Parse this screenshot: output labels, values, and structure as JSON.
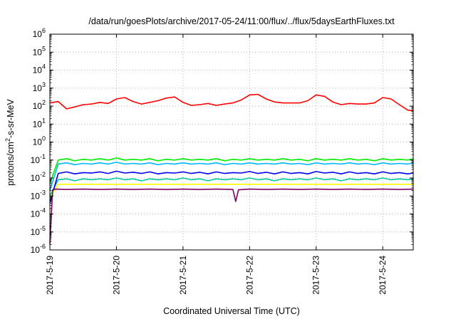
{
  "chart_data": {
    "type": "line",
    "title": "/data/run/goesPlots/archive/2017-05-24/11:00/flux/../flux/5daysEarthFluxes.txt",
    "xlabel": "Coordinated Universal Time (UTC)",
    "ylabel_parts": [
      "protons/cm",
      "2",
      "-s-sr-MeV"
    ],
    "y_scale": "log",
    "ylim_exp": [
      -6,
      6
    ],
    "y_ticks": [
      {
        "base": "10",
        "exp": "-6"
      },
      {
        "base": "10",
        "exp": "-5"
      },
      {
        "base": "10",
        "exp": "-4"
      },
      {
        "base": "10",
        "exp": "-3"
      },
      {
        "base": "10",
        "exp": "-2"
      },
      {
        "base": "10",
        "exp": "-1"
      },
      {
        "base": "10",
        "exp": "0"
      },
      {
        "base": "10",
        "exp": "1"
      },
      {
        "base": "10",
        "exp": "2"
      },
      {
        "base": "10",
        "exp": "3"
      },
      {
        "base": "10",
        "exp": "4"
      },
      {
        "base": "10",
        "exp": "5"
      },
      {
        "base": "10",
        "exp": "6"
      }
    ],
    "x_start": "2017-05-19T00:00",
    "x_end": "2017-05-24T11:00",
    "x_ticks": [
      {
        "label": "2017-5-19",
        "date": "2017-05-19"
      },
      {
        "label": "2017-5-20",
        "date": "2017-05-20"
      },
      {
        "label": "2017-5-21",
        "date": "2017-05-21"
      },
      {
        "label": "2017-5-22",
        "date": "2017-05-22"
      },
      {
        "label": "2017-5-23",
        "date": "2017-05-23"
      },
      {
        "label": "2017-5-24",
        "date": "2017-05-24"
      }
    ],
    "grid": true,
    "series": [
      {
        "color": "#ff0000",
        "x": [
          "2017-05-19T00:00",
          "2017-05-19T03:00",
          "2017-05-19T06:00",
          "2017-05-19T09:00",
          "2017-05-19T12:00",
          "2017-05-19T15:00",
          "2017-05-19T18:00",
          "2017-05-19T21:00",
          "2017-05-20T00:00",
          "2017-05-20T03:00",
          "2017-05-20T06:00",
          "2017-05-20T09:00",
          "2017-05-20T12:00",
          "2017-05-20T15:00",
          "2017-05-20T18:00",
          "2017-05-20T21:00",
          "2017-05-21T00:00",
          "2017-05-21T03:00",
          "2017-05-21T06:00",
          "2017-05-21T09:00",
          "2017-05-21T12:00",
          "2017-05-21T15:00",
          "2017-05-21T18:00",
          "2017-05-21T21:00",
          "2017-05-22T00:00",
          "2017-05-22T03:00",
          "2017-05-22T06:00",
          "2017-05-22T09:00",
          "2017-05-22T12:00",
          "2017-05-22T15:00",
          "2017-05-22T18:00",
          "2017-05-22T21:00",
          "2017-05-23T00:00",
          "2017-05-23T03:00",
          "2017-05-23T06:00",
          "2017-05-23T09:00",
          "2017-05-23T12:00",
          "2017-05-23T15:00",
          "2017-05-23T18:00",
          "2017-05-23T21:00",
          "2017-05-24T00:00",
          "2017-05-24T03:00",
          "2017-05-24T06:00",
          "2017-05-24T09:00",
          "2017-05-24T11:00"
        ],
        "values": [
          150,
          180,
          70,
          90,
          120,
          130,
          160,
          140,
          250,
          300,
          180,
          130,
          160,
          200,
          280,
          320,
          160,
          110,
          120,
          140,
          110,
          130,
          150,
          220,
          420,
          450,
          250,
          170,
          150,
          150,
          150,
          200,
          420,
          350,
          170,
          120,
          140,
          130,
          130,
          150,
          300,
          250,
          120,
          60,
          55
        ]
      },
      {
        "color": "#00ee00",
        "x": [
          "2017-05-19T00:00",
          "2017-05-19T03:00",
          "2017-05-19T06:00",
          "2017-05-19T09:00",
          "2017-05-19T12:00",
          "2017-05-19T15:00",
          "2017-05-19T18:00",
          "2017-05-19T21:00",
          "2017-05-20T00:00",
          "2017-05-20T03:00",
          "2017-05-20T06:00",
          "2017-05-20T09:00",
          "2017-05-20T12:00",
          "2017-05-20T15:00",
          "2017-05-20T18:00",
          "2017-05-20T21:00",
          "2017-05-21T00:00",
          "2017-05-21T03:00",
          "2017-05-21T06:00",
          "2017-05-21T09:00",
          "2017-05-21T12:00",
          "2017-05-21T15:00",
          "2017-05-21T18:00",
          "2017-05-21T21:00",
          "2017-05-22T00:00",
          "2017-05-22T03:00",
          "2017-05-22T06:00",
          "2017-05-22T09:00",
          "2017-05-22T12:00",
          "2017-05-22T15:00",
          "2017-05-22T18:00",
          "2017-05-22T21:00",
          "2017-05-23T00:00",
          "2017-05-23T03:00",
          "2017-05-23T06:00",
          "2017-05-23T09:00",
          "2017-05-23T12:00",
          "2017-05-23T15:00",
          "2017-05-23T18:00",
          "2017-05-23T21:00",
          "2017-05-24T00:00",
          "2017-05-24T03:00",
          "2017-05-24T06:00",
          "2017-05-24T09:00",
          "2017-05-24T11:00"
        ],
        "values": [
          0.005,
          0.1,
          0.12,
          0.09,
          0.11,
          0.1,
          0.12,
          0.1,
          0.13,
          0.1,
          0.11,
          0.1,
          0.12,
          0.09,
          0.11,
          0.1,
          0.12,
          0.1,
          0.11,
          0.1,
          0.12,
          0.09,
          0.11,
          0.1,
          0.12,
          0.1,
          0.11,
          0.1,
          0.12,
          0.1,
          0.11,
          0.09,
          0.12,
          0.1,
          0.11,
          0.1,
          0.12,
          0.1,
          0.11,
          0.09,
          0.12,
          0.1,
          0.11,
          0.1,
          0.12
        ]
      },
      {
        "color": "#00b8ff",
        "x": [
          "2017-05-19T00:00",
          "2017-05-19T03:00",
          "2017-05-19T06:00",
          "2017-05-19T09:00",
          "2017-05-19T12:00",
          "2017-05-19T15:00",
          "2017-05-19T18:00",
          "2017-05-19T21:00",
          "2017-05-20T00:00",
          "2017-05-20T03:00",
          "2017-05-20T06:00",
          "2017-05-20T09:00",
          "2017-05-20T12:00",
          "2017-05-20T15:00",
          "2017-05-20T18:00",
          "2017-05-20T21:00",
          "2017-05-21T00:00",
          "2017-05-21T03:00",
          "2017-05-21T06:00",
          "2017-05-21T09:00",
          "2017-05-21T12:00",
          "2017-05-21T15:00",
          "2017-05-21T18:00",
          "2017-05-21T21:00",
          "2017-05-22T00:00",
          "2017-05-22T03:00",
          "2017-05-22T06:00",
          "2017-05-22T09:00",
          "2017-05-22T12:00",
          "2017-05-22T15:00",
          "2017-05-22T18:00",
          "2017-05-22T21:00",
          "2017-05-23T00:00",
          "2017-05-23T03:00",
          "2017-05-23T06:00",
          "2017-05-23T09:00",
          "2017-05-23T12:00",
          "2017-05-23T15:00",
          "2017-05-23T18:00",
          "2017-05-23T21:00",
          "2017-05-24T00:00",
          "2017-05-24T03:00",
          "2017-05-24T06:00",
          "2017-05-24T09:00",
          "2017-05-24T11:00"
        ],
        "values": [
          0.002,
          0.06,
          0.07,
          0.055,
          0.065,
          0.06,
          0.07,
          0.06,
          0.075,
          0.06,
          0.065,
          0.06,
          0.07,
          0.055,
          0.065,
          0.06,
          0.07,
          0.06,
          0.065,
          0.06,
          0.07,
          0.055,
          0.065,
          0.06,
          0.07,
          0.06,
          0.065,
          0.06,
          0.07,
          0.06,
          0.065,
          0.055,
          0.07,
          0.06,
          0.065,
          0.06,
          0.07,
          0.06,
          0.065,
          0.055,
          0.07,
          0.06,
          0.065,
          0.06,
          0.07
        ]
      },
      {
        "color": "#00c8a0",
        "x": [
          "2017-05-19T00:00",
          "2017-05-19T03:00",
          "2017-05-19T06:00",
          "2017-05-19T09:00",
          "2017-05-19T12:00",
          "2017-05-19T15:00",
          "2017-05-19T18:00",
          "2017-05-19T21:00",
          "2017-05-20T00:00",
          "2017-05-20T03:00",
          "2017-05-20T06:00",
          "2017-05-20T09:00",
          "2017-05-20T12:00",
          "2017-05-20T15:00",
          "2017-05-20T18:00",
          "2017-05-20T21:00",
          "2017-05-21T00:00",
          "2017-05-21T03:00",
          "2017-05-21T06:00",
          "2017-05-21T09:00",
          "2017-05-21T12:00",
          "2017-05-21T15:00",
          "2017-05-21T18:00",
          "2017-05-21T21:00",
          "2017-05-22T00:00",
          "2017-05-22T03:00",
          "2017-05-22T06:00",
          "2017-05-22T09:00",
          "2017-05-22T12:00",
          "2017-05-22T15:00",
          "2017-05-22T18:00",
          "2017-05-22T21:00",
          "2017-05-23T00:00",
          "2017-05-23T03:00",
          "2017-05-23T06:00",
          "2017-05-23T09:00",
          "2017-05-23T12:00",
          "2017-05-23T15:00",
          "2017-05-23T18:00",
          "2017-05-23T21:00",
          "2017-05-24T00:00",
          "2017-05-24T03:00",
          "2017-05-24T06:00",
          "2017-05-24T09:00",
          "2017-05-24T11:00"
        ],
        "values": [
          0.001,
          0.008,
          0.009,
          0.007,
          0.009,
          0.008,
          0.009,
          0.008,
          0.01,
          0.008,
          0.009,
          0.007,
          0.009,
          0.008,
          0.009,
          0.008,
          0.01,
          0.008,
          0.009,
          0.007,
          0.009,
          0.008,
          0.009,
          0.008,
          0.01,
          0.008,
          0.009,
          0.007,
          0.009,
          0.008,
          0.009,
          0.008,
          0.01,
          0.008,
          0.009,
          0.007,
          0.009,
          0.008,
          0.009,
          0.008,
          0.01,
          0.008,
          0.009,
          0.008,
          0.009
        ]
      },
      {
        "color": "#0000ee",
        "x": [
          "2017-05-19T00:00",
          "2017-05-19T03:00",
          "2017-05-19T06:00",
          "2017-05-19T09:00",
          "2017-05-19T12:00",
          "2017-05-19T15:00",
          "2017-05-19T18:00",
          "2017-05-19T21:00",
          "2017-05-20T00:00",
          "2017-05-20T03:00",
          "2017-05-20T06:00",
          "2017-05-20T09:00",
          "2017-05-20T12:00",
          "2017-05-20T15:00",
          "2017-05-20T18:00",
          "2017-05-20T21:00",
          "2017-05-21T00:00",
          "2017-05-21T03:00",
          "2017-05-21T06:00",
          "2017-05-21T09:00",
          "2017-05-21T12:00",
          "2017-05-21T15:00",
          "2017-05-21T18:00",
          "2017-05-21T21:00",
          "2017-05-22T00:00",
          "2017-05-22T03:00",
          "2017-05-22T06:00",
          "2017-05-22T09:00",
          "2017-05-22T12:00",
          "2017-05-22T15:00",
          "2017-05-22T18:00",
          "2017-05-22T21:00",
          "2017-05-23T00:00",
          "2017-05-23T03:00",
          "2017-05-23T06:00",
          "2017-05-23T09:00",
          "2017-05-23T12:00",
          "2017-05-23T15:00",
          "2017-05-23T18:00",
          "2017-05-23T21:00",
          "2017-05-24T00:00",
          "2017-05-24T03:00",
          "2017-05-24T06:00",
          "2017-05-24T09:00",
          "2017-05-24T11:00"
        ],
        "values": [
          0.0004,
          0.018,
          0.022,
          0.017,
          0.02,
          0.019,
          0.022,
          0.018,
          0.024,
          0.019,
          0.021,
          0.018,
          0.022,
          0.017,
          0.02,
          0.019,
          0.022,
          0.018,
          0.021,
          0.017,
          0.022,
          0.018,
          0.02,
          0.019,
          0.023,
          0.018,
          0.021,
          0.017,
          0.022,
          0.018,
          0.02,
          0.017,
          0.023,
          0.019,
          0.021,
          0.017,
          0.022,
          0.018,
          0.02,
          0.017,
          0.022,
          0.018,
          0.02,
          0.017,
          0.019
        ]
      },
      {
        "color": "#ffff00",
        "x": [
          "2017-05-19T00:00",
          "2017-05-19T03:00",
          "2017-05-19T06:00",
          "2017-05-19T12:00",
          "2017-05-20T00:00",
          "2017-05-20T12:00",
          "2017-05-21T00:00",
          "2017-05-21T12:00",
          "2017-05-22T00:00",
          "2017-05-22T12:00",
          "2017-05-23T00:00",
          "2017-05-23T12:00",
          "2017-05-24T00:00",
          "2017-05-24T11:00"
        ],
        "values": [
          0.0008,
          0.0045,
          0.0045,
          0.0045,
          0.0045,
          0.0045,
          0.0045,
          0.0045,
          0.0045,
          0.0045,
          0.0045,
          0.0045,
          0.0045,
          0.0045
        ]
      },
      {
        "color": "#800060",
        "x": [
          "2017-05-19T00:00",
          "2017-05-19T01:00",
          "2017-05-19T02:00",
          "2017-05-19T06:00",
          "2017-05-19T12:00",
          "2017-05-19T18:00",
          "2017-05-20T00:00",
          "2017-05-20T06:00",
          "2017-05-20T12:00",
          "2017-05-20T18:00",
          "2017-05-21T00:00",
          "2017-05-21T06:00",
          "2017-05-21T12:00",
          "2017-05-21T18:00",
          "2017-05-21T19:00",
          "2017-05-21T20:00",
          "2017-05-22T00:00",
          "2017-05-22T06:00",
          "2017-05-22T12:00",
          "2017-05-22T18:00",
          "2017-05-23T00:00",
          "2017-05-23T06:00",
          "2017-05-23T12:00",
          "2017-05-23T18:00",
          "2017-05-24T00:00",
          "2017-05-24T06:00",
          "2017-05-24T11:00"
        ],
        "values": [
          2.2e-06,
          0.0022,
          0.0024,
          0.0023,
          0.0024,
          0.0023,
          0.0024,
          0.0023,
          0.0024,
          0.0023,
          0.0024,
          0.0023,
          0.0024,
          0.0023,
          0.0005,
          0.0022,
          0.0024,
          0.0023,
          0.0024,
          0.0023,
          0.0024,
          0.0023,
          0.0024,
          0.0023,
          0.0024,
          0.0023,
          0.0024
        ]
      }
    ]
  }
}
